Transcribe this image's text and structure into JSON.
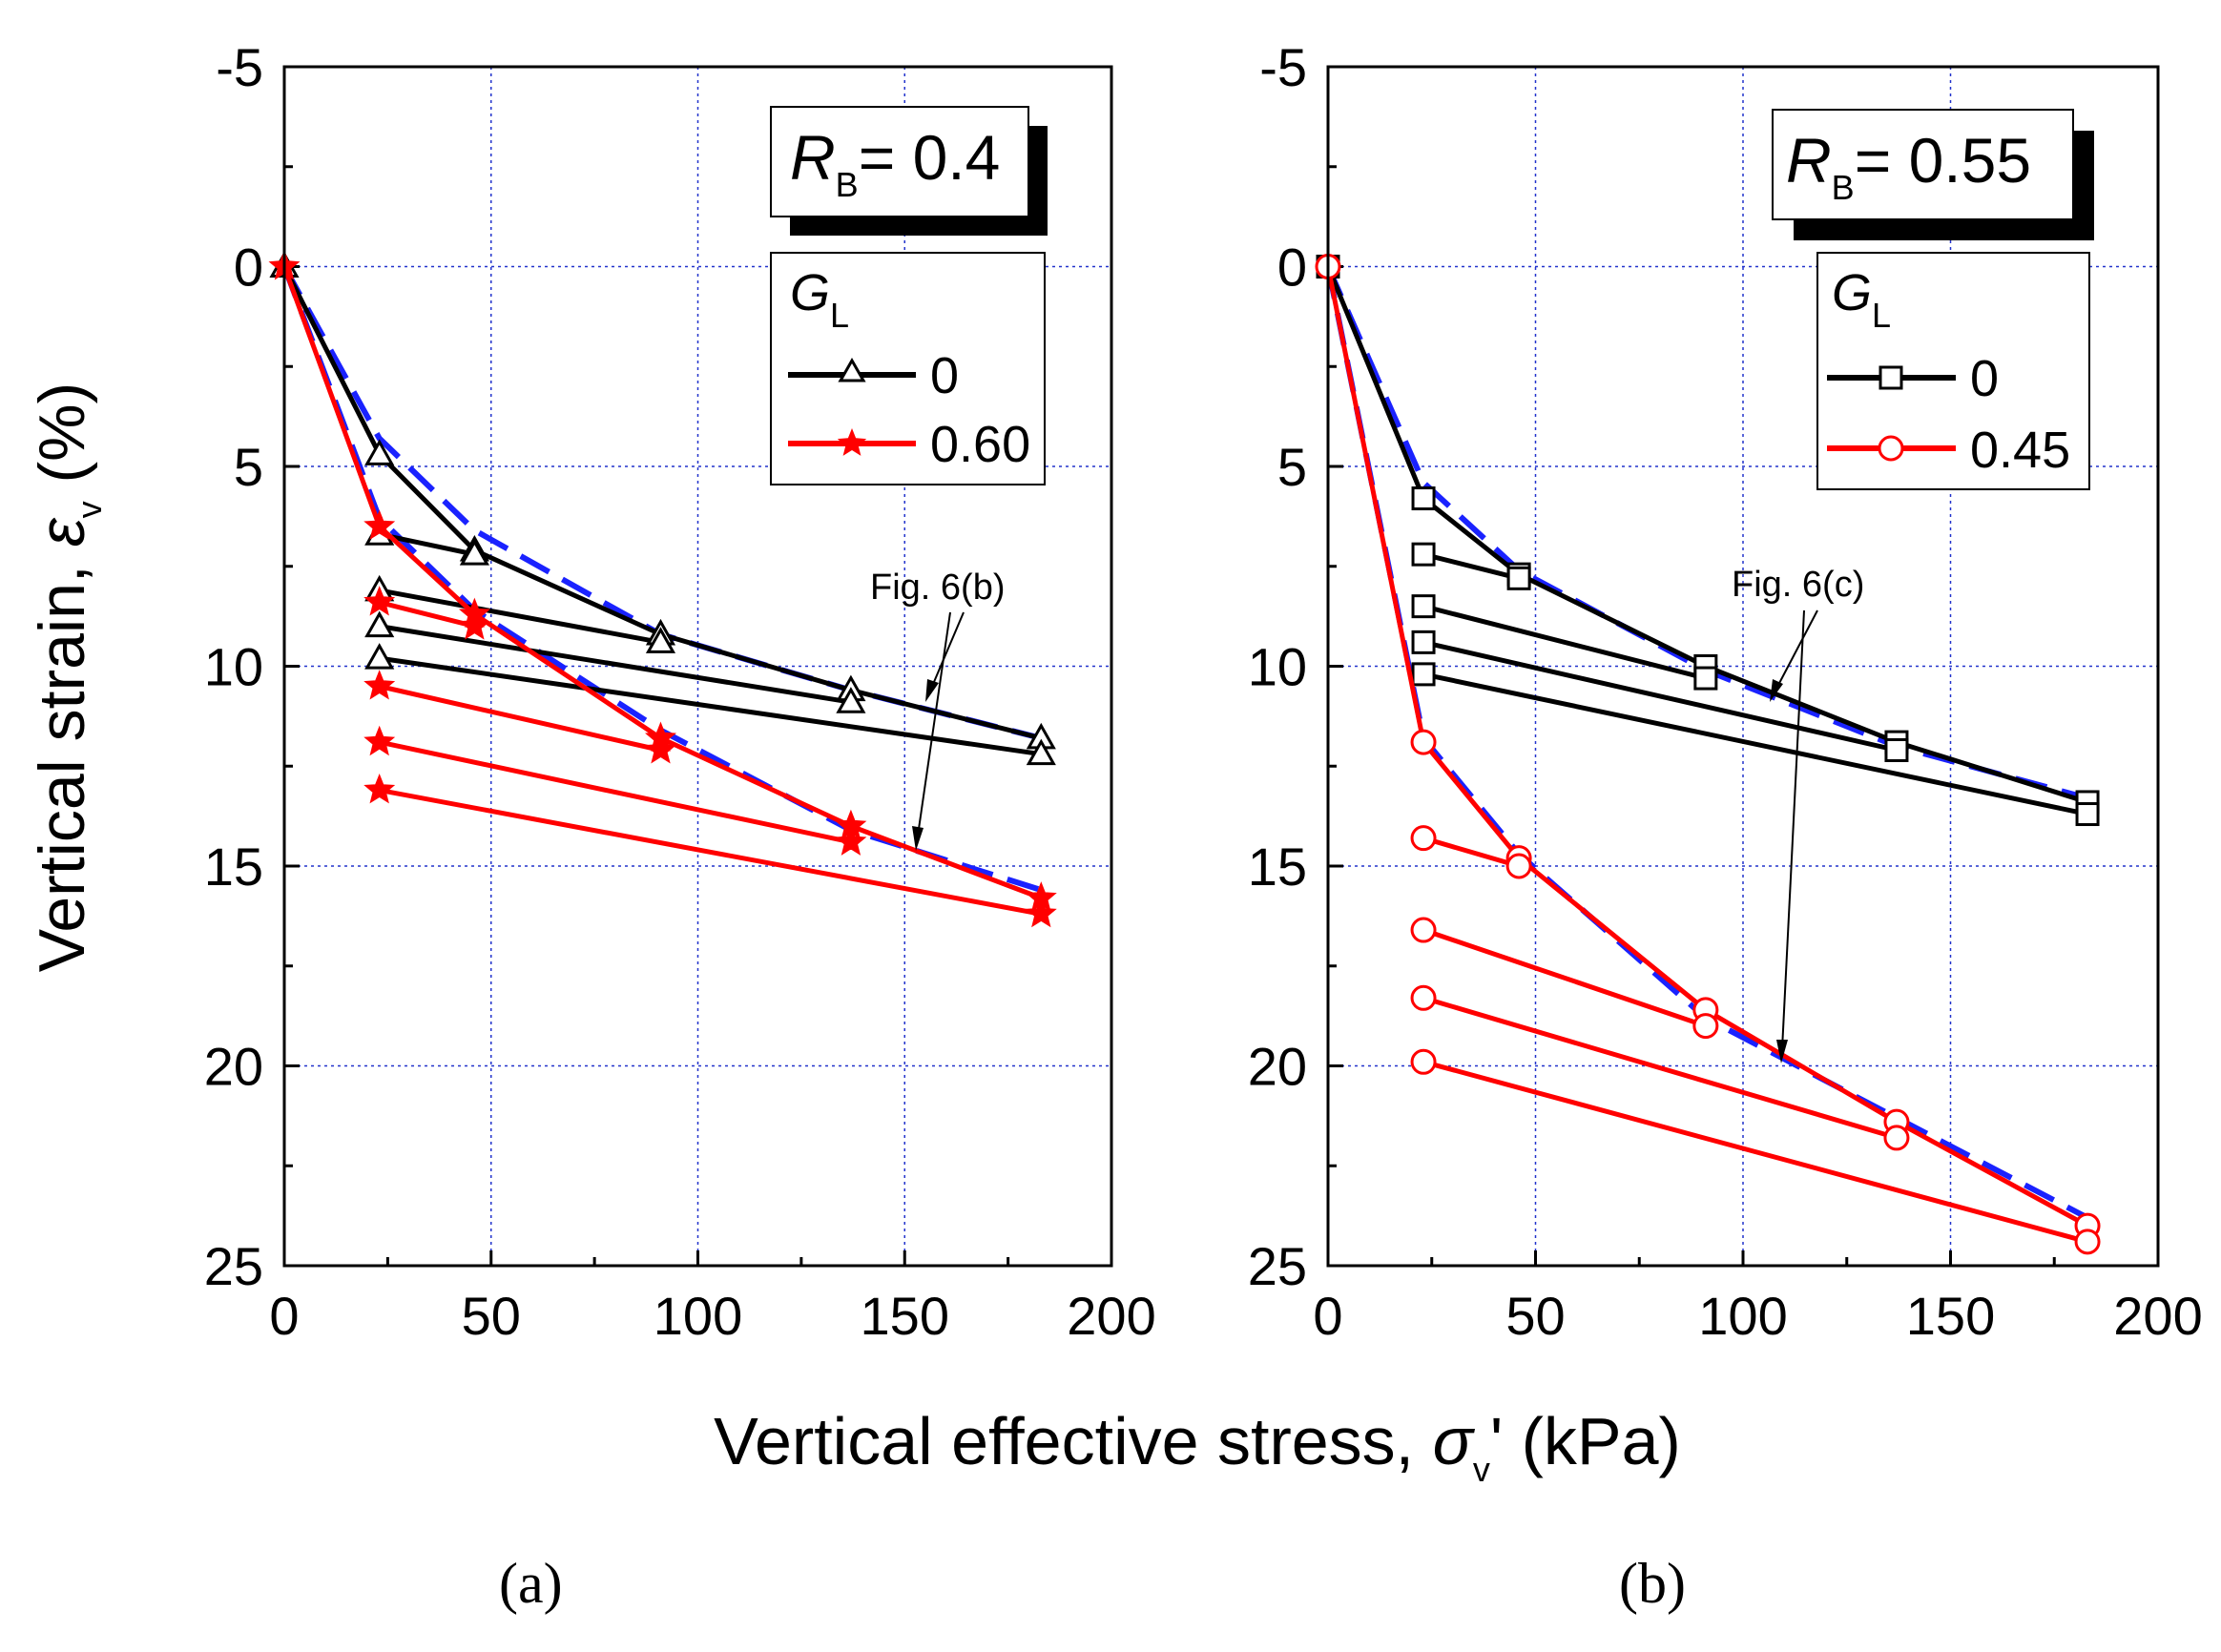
{
  "chart_data": [
    {
      "type": "line",
      "panel_label": "(a)",
      "rb_label": {
        "symbol": "R",
        "subscript": "B",
        "text": "= 0.4"
      },
      "legend_title": {
        "symbol": "G",
        "subscript": "L"
      },
      "annotation": "Fig. 6(b)",
      "xlim": [
        0,
        200
      ],
      "ylim": [
        -5,
        25
      ],
      "y_inverted": true,
      "xticks": [
        0,
        50,
        100,
        150,
        200
      ],
      "yticks": [
        -5,
        0,
        5,
        10,
        15,
        20,
        25
      ],
      "grid": true,
      "series": [
        {
          "name": "0",
          "color": "#000000",
          "marker": "triangle",
          "lines": [
            [
              [
                0,
                0
              ],
              [
                23,
                4.7
              ],
              [
                46,
                7.1
              ],
              [
                91,
                9.2
              ],
              [
                137,
                10.6
              ],
              [
                183,
                11.8
              ]
            ],
            [
              [
                23,
                6.7
              ],
              [
                46,
                7.2
              ]
            ],
            [
              [
                23,
                8.1
              ],
              [
                91,
                9.4
              ]
            ],
            [
              [
                23,
                9.0
              ],
              [
                137,
                10.9
              ]
            ],
            [
              [
                23,
                9.8
              ],
              [
                183,
                12.2
              ]
            ]
          ]
        },
        {
          "name": "0.60",
          "color": "#ff0000",
          "marker": "star",
          "lines": [
            [
              [
                0,
                0
              ],
              [
                23,
                6.5
              ],
              [
                46,
                8.7
              ],
              [
                91,
                11.8
              ],
              [
                137,
                14.0
              ],
              [
                183,
                15.8
              ]
            ],
            [
              [
                23,
                8.4
              ],
              [
                46,
                9.0
              ]
            ],
            [
              [
                23,
                10.5
              ],
              [
                91,
                12.1
              ]
            ],
            [
              [
                23,
                11.9
              ],
              [
                137,
                14.4
              ]
            ],
            [
              [
                23,
                13.1
              ],
              [
                183,
                16.2
              ]
            ]
          ]
        }
      ],
      "dashed_envelope": {
        "color": "#1a22ff",
        "points": [
          [
            0,
            0
          ],
          [
            23,
            4.3
          ],
          [
            46,
            6.6
          ],
          [
            91,
            9.2
          ],
          [
            137,
            10.6
          ],
          [
            183,
            11.8
          ],
          [
            0,
            0
          ],
          [
            23,
            6.3
          ],
          [
            46,
            8.6
          ],
          [
            91,
            11.6
          ],
          [
            137,
            14.1
          ],
          [
            183,
            15.6
          ]
        ]
      }
    },
    {
      "type": "line",
      "panel_label": "(b)",
      "rb_label": {
        "symbol": "R",
        "subscript": "B",
        "text": "= 0.55"
      },
      "legend_title": {
        "symbol": "G",
        "subscript": "L"
      },
      "annotation": "Fig. 6(c)",
      "xlim": [
        0,
        200
      ],
      "ylim": [
        -5,
        25
      ],
      "y_inverted": true,
      "xticks": [
        0,
        50,
        100,
        150,
        200
      ],
      "yticks": [
        -5,
        0,
        5,
        10,
        15,
        20,
        25
      ],
      "grid": true,
      "series": [
        {
          "name": "0",
          "color": "#000000",
          "marker": "square",
          "lines": [
            [
              [
                0,
                0
              ],
              [
                23,
                5.8
              ],
              [
                46,
                7.7
              ],
              [
                91,
                10.0
              ],
              [
                137,
                11.9
              ],
              [
                183,
                13.4
              ]
            ],
            [
              [
                23,
                7.2
              ],
              [
                46,
                7.8
              ]
            ],
            [
              [
                23,
                8.5
              ],
              [
                91,
                10.3
              ]
            ],
            [
              [
                23,
                9.4
              ],
              [
                137,
                12.1
              ]
            ],
            [
              [
                23,
                10.2
              ],
              [
                183,
                13.7
              ]
            ]
          ]
        },
        {
          "name": "0.45",
          "color": "#ff0000",
          "marker": "circle",
          "lines": [
            [
              [
                0,
                0
              ],
              [
                23,
                11.9
              ],
              [
                46,
                14.8
              ],
              [
                91,
                18.6
              ],
              [
                137,
                21.4
              ],
              [
                183,
                24.0
              ]
            ],
            [
              [
                23,
                14.3
              ],
              [
                46,
                15.0
              ]
            ],
            [
              [
                23,
                16.6
              ],
              [
                91,
                19.0
              ]
            ],
            [
              [
                23,
                18.3
              ],
              [
                137,
                21.8
              ]
            ],
            [
              [
                23,
                19.9
              ],
              [
                183,
                24.4
              ]
            ]
          ]
        }
      ],
      "dashed_envelope": {
        "color": "#1a22ff",
        "points": [
          [
            0,
            0
          ],
          [
            23,
            5.4
          ],
          [
            46,
            7.6
          ],
          [
            91,
            10.1
          ],
          [
            137,
            12.0
          ],
          [
            183,
            13.3
          ],
          [
            0,
            0
          ],
          [
            23,
            11.8
          ],
          [
            46,
            14.7
          ],
          [
            91,
            18.8
          ],
          [
            137,
            21.3
          ],
          [
            183,
            23.8
          ]
        ]
      }
    }
  ],
  "shared": {
    "ylabel_main": "Vertical strain, ",
    "ylabel_symbol": "ε",
    "ylabel_sub": "v",
    "ylabel_unit": " (%)",
    "xlabel_main": "Vertical effective stress, ",
    "xlabel_symbol": "σ",
    "xlabel_sub": "v",
    "xlabel_unit": "' (kPa)"
  }
}
